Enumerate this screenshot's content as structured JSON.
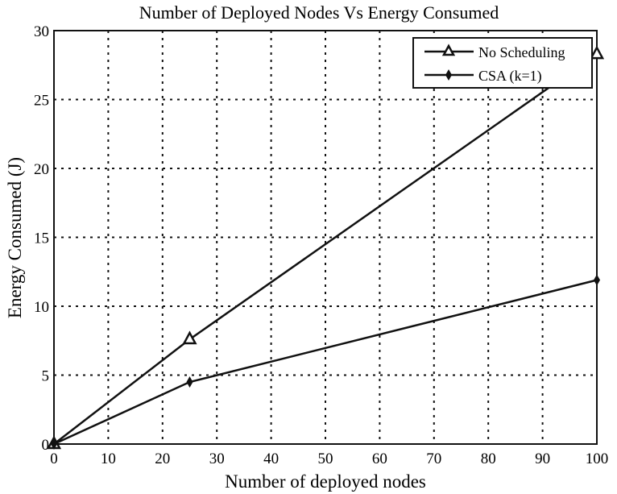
{
  "chart_data": {
    "type": "line",
    "title": "Number of Deployed Nodes Vs Energy Consumed",
    "xlabel": "Number of deployed nodes",
    "ylabel": "Energy Consumed (J)",
    "xlim": [
      0,
      100
    ],
    "ylim": [
      0,
      30
    ],
    "xticks": [
      0,
      10,
      20,
      30,
      40,
      50,
      60,
      70,
      80,
      90,
      100
    ],
    "yticks": [
      0,
      5,
      10,
      15,
      20,
      25,
      30
    ],
    "grid": true,
    "legend_position": "upper right",
    "series": [
      {
        "name": "No Scheduling",
        "marker": "triangle-open",
        "x": [
          0,
          25,
          100
        ],
        "values": [
          0,
          7.6,
          28.3
        ]
      },
      {
        "name": "CSA (k=1)",
        "marker": "diamond-filled",
        "x": [
          0,
          25,
          100
        ],
        "values": [
          0,
          4.5,
          11.9
        ]
      }
    ]
  },
  "colors": {
    "line": "#111111",
    "grid": "#111111",
    "background": "#ffffff"
  }
}
